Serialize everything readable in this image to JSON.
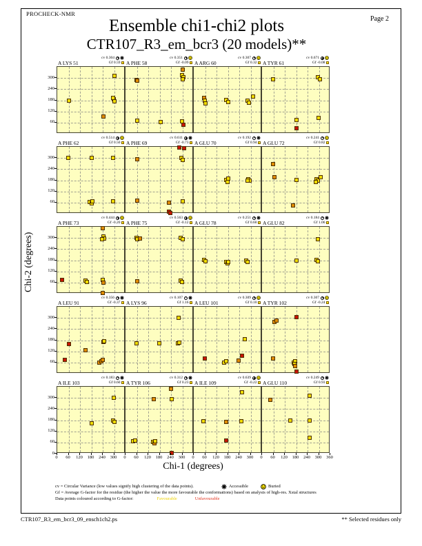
{
  "page": {
    "app": "PROCHECK-NMR",
    "page_label": "Page  2",
    "title": "Ensemble chi1-chi2 plots",
    "subtitle": "CTR107_R3_em_bcr3 (20 models)**",
    "xlabel": "Chi-1 (degrees)",
    "ylabel": "Chi-2 (degrees)",
    "footer_left": "CTR107_R3_em_bcr3_09_ensch1ch2.ps",
    "footer_right": "** Selected residues only"
  },
  "legend": {
    "line1": "cv = Circular Variance (low values signify high clustering of the data points).",
    "accessible_label": "Accessible",
    "buried_label": "Buried",
    "line2": "Gf = Average G-factor for the residue (the higher the value the more favourable the conformations) based on analysis of high-res. Xstal structures",
    "line3_prefix": "Data points coloured according to G-factor:",
    "favourable_label": "Favourable",
    "unfavourable_label": "Unfavourable"
  },
  "colors": {
    "plot_bg": "#FEFEC0",
    "favourable": "#EFDC00",
    "mid": "#E08C00",
    "unfavourable": "#C81400",
    "favourable_text": "#EDD200",
    "unfavourable_text": "#E0301C"
  },
  "axes": {
    "ticks": [
      0,
      60,
      120,
      180,
      240,
      300
    ],
    "max": 360,
    "end_tick": 360
  },
  "chart_data": {
    "type": "scatter",
    "x_range": [
      0,
      360
    ],
    "y_range": [
      0,
      360
    ],
    "grid_step": 60,
    "subplots": [
      {
        "residue": "A LYS 51",
        "cv": "0.304",
        "gf": "0.59",
        "access": "accessible",
        "points": [
          [
            60,
            180,
            "f"
          ],
          [
            300,
            312,
            "f"
          ],
          [
            297,
            185,
            "f"
          ],
          [
            300,
            175,
            "f"
          ],
          [
            293,
            192,
            "f"
          ],
          [
            243,
            92,
            "m"
          ]
        ]
      },
      {
        "residue": "A PHE 58",
        "cv": "0.351",
        "gf": "-0.09",
        "access": "buried",
        "points": [
          [
            57,
            290,
            "m"
          ],
          [
            63,
            286,
            "m"
          ],
          [
            300,
            345,
            "m"
          ],
          [
            298,
            315,
            "f"
          ],
          [
            305,
            305,
            "f"
          ],
          [
            300,
            295,
            "f"
          ],
          [
            62,
            70,
            "f"
          ],
          [
            185,
            62,
            "f"
          ],
          [
            298,
            68,
            "f"
          ],
          [
            305,
            50,
            "u"
          ]
        ]
      },
      {
        "residue": "A ARG 60",
        "cv": "0.307",
        "gf": "0.32",
        "access": "buried",
        "points": [
          [
            55,
            192,
            "m"
          ],
          [
            58,
            178,
            "f"
          ],
          [
            62,
            165,
            "f"
          ],
          [
            172,
            182,
            "f"
          ],
          [
            182,
            172,
            "f"
          ],
          [
            285,
            180,
            "f"
          ],
          [
            292,
            168,
            "f"
          ],
          [
            313,
            200,
            "f"
          ]
        ]
      },
      {
        "residue": "A TYR 61",
        "cv": "0.671",
        "gf": "-0.08",
        "access": "buried",
        "points": [
          [
            58,
            295,
            "f"
          ],
          [
            295,
            305,
            "f"
          ],
          [
            305,
            295,
            "f"
          ],
          [
            180,
            75,
            "f"
          ],
          [
            298,
            85,
            "f"
          ],
          [
            180,
            28,
            "u"
          ]
        ]
      },
      {
        "residue": "A PHE 62",
        "cv": "0.514",
        "gf": "0.50",
        "access": "buried",
        "points": [
          [
            58,
            300,
            "f"
          ],
          [
            180,
            300,
            "f"
          ],
          [
            295,
            300,
            "f"
          ],
          [
            172,
            62,
            "f"
          ],
          [
            180,
            55,
            "f"
          ],
          [
            185,
            68,
            "f"
          ],
          [
            295,
            68,
            "f"
          ]
        ]
      },
      {
        "residue": "A PHE 69",
        "cv": "0.611",
        "gf": "-0.73",
        "access": "accessible",
        "points": [
          [
            60,
            293,
            "m"
          ],
          [
            293,
            300,
            "f"
          ],
          [
            300,
            290,
            "f"
          ],
          [
            283,
            358,
            "u"
          ],
          [
            308,
            352,
            "u"
          ],
          [
            60,
            70,
            "m"
          ],
          [
            228,
            58,
            "m"
          ],
          [
            300,
            66,
            "f"
          ],
          [
            228,
            12,
            "u"
          ],
          [
            238,
            4,
            "u"
          ]
        ]
      },
      {
        "residue": "A GLU 70",
        "cv": "0.192",
        "gf": "0.94",
        "access": "accessible",
        "points": [
          [
            172,
            182,
            "f"
          ],
          [
            178,
            172,
            "f"
          ],
          [
            180,
            188,
            "f"
          ],
          [
            288,
            185,
            "f"
          ],
          [
            295,
            180,
            "f"
          ],
          [
            283,
            178,
            "f"
          ]
        ]
      },
      {
        "residue": "A GLU 72",
        "cv": "0.241",
        "gf": "0.82",
        "access": "buried",
        "points": [
          [
            58,
            268,
            "m"
          ],
          [
            65,
            195,
            "m"
          ],
          [
            180,
            182,
            "f"
          ],
          [
            288,
            185,
            "f"
          ],
          [
            295,
            178,
            "f"
          ],
          [
            310,
            195,
            "f"
          ],
          [
            283,
            172,
            "f"
          ],
          [
            165,
            45,
            "m"
          ]
        ]
      },
      {
        "residue": "A PHE 73",
        "cv": "0.444",
        "gf": "-0.20",
        "access": "buried",
        "points": [
          [
            240,
            352,
            "m"
          ],
          [
            242,
            308,
            "f"
          ],
          [
            248,
            298,
            "f"
          ],
          [
            238,
            292,
            "f"
          ],
          [
            25,
            75,
            "u"
          ],
          [
            150,
            70,
            "f"
          ],
          [
            158,
            62,
            "f"
          ],
          [
            240,
            75,
            "f"
          ],
          [
            242,
            58,
            "m"
          ],
          [
            240,
            3,
            "m"
          ]
        ]
      },
      {
        "residue": "A PHE 75",
        "cv": "0.563",
        "gf": "-0.12",
        "access": "buried",
        "points": [
          [
            57,
            300,
            "f"
          ],
          [
            63,
            295,
            "f"
          ],
          [
            78,
            298,
            "m"
          ],
          [
            292,
            302,
            "f"
          ],
          [
            300,
            295,
            "f"
          ],
          [
            60,
            68,
            "m"
          ],
          [
            292,
            72,
            "f"
          ],
          [
            298,
            64,
            "f"
          ]
        ]
      },
      {
        "residue": "A GLU 78",
        "cv": "0.251",
        "gf": "0.60",
        "access": "accessible",
        "points": [
          [
            55,
            182,
            "f"
          ],
          [
            62,
            175,
            "f"
          ],
          [
            170,
            172,
            "f"
          ],
          [
            178,
            165,
            "f"
          ],
          [
            183,
            170,
            "f"
          ],
          [
            278,
            180,
            "f"
          ],
          [
            285,
            172,
            "f"
          ]
        ]
      },
      {
        "residue": "A GLU 82",
        "cv": "0.184",
        "gf": "1.06",
        "access": "accessible",
        "points": [
          [
            293,
            295,
            "f"
          ],
          [
            180,
            180,
            "f"
          ],
          [
            287,
            182,
            "f"
          ],
          [
            293,
            175,
            "f"
          ]
        ]
      },
      {
        "residue": "A LEU 91",
        "cv": "0.356",
        "gf": "-0.37",
        "access": "accessible",
        "points": [
          [
            62,
            160,
            "u"
          ],
          [
            150,
            125,
            "m"
          ],
          [
            40,
            75,
            "u"
          ],
          [
            243,
            170,
            "f"
          ],
          [
            248,
            174,
            "f"
          ],
          [
            222,
            58,
            "m"
          ],
          [
            232,
            66,
            "m"
          ],
          [
            240,
            74,
            "m"
          ]
        ]
      },
      {
        "residue": "A LYS 96",
        "cv": "0.107",
        "gf": "1.16",
        "access": "accessible",
        "points": [
          [
            58,
            165,
            "f"
          ],
          [
            178,
            162,
            "f"
          ],
          [
            280,
            300,
            "f"
          ],
          [
            275,
            163,
            "f"
          ],
          [
            282,
            168,
            "f"
          ]
        ]
      },
      {
        "residue": "A LEU 101",
        "cv": "0.309",
        "gf": "0.10",
        "access": "buried",
        "points": [
          [
            58,
            80,
            "u"
          ],
          [
            160,
            60,
            "f"
          ],
          [
            170,
            65,
            "f"
          ],
          [
            238,
            72,
            "m"
          ],
          [
            253,
            95,
            "u"
          ],
          [
            268,
            185,
            "f"
          ]
        ]
      },
      {
        "residue": "A TYR 102",
        "cv": "0.307",
        "gf": "-0.24",
        "access": "buried",
        "points": [
          [
            65,
            278,
            "m"
          ],
          [
            78,
            285,
            "m"
          ],
          [
            180,
            305,
            "u"
          ],
          [
            58,
            80,
            "m"
          ],
          [
            166,
            60,
            "f"
          ],
          [
            174,
            66,
            "f"
          ],
          [
            170,
            52,
            "f"
          ],
          [
            174,
            40,
            "m"
          ],
          [
            180,
            12,
            "u"
          ]
        ]
      },
      {
        "residue": "A ILE 103",
        "cv": "0.183",
        "gf": "0.60",
        "access": "accessible",
        "points": [
          [
            180,
            165,
            "f"
          ],
          [
            296,
            178,
            "f"
          ],
          [
            302,
            170,
            "f"
          ],
          [
            298,
            300,
            "f"
          ]
        ]
      },
      {
        "residue": "A TYR 106",
        "cv": "0.312",
        "gf": "0.23",
        "access": "accessible",
        "points": [
          [
            240,
            350,
            "m"
          ],
          [
            150,
            295,
            "m"
          ],
          [
            244,
            295,
            "f"
          ],
          [
            40,
            65,
            "f"
          ],
          [
            52,
            72,
            "f"
          ],
          [
            144,
            62,
            "f"
          ],
          [
            152,
            55,
            "m"
          ],
          [
            158,
            66,
            "f"
          ],
          [
            244,
            5,
            "u"
          ]
        ]
      },
      {
        "residue": "A ILE 109",
        "cv": "0.639",
        "gf": "-0.22",
        "access": "buried",
        "points": [
          [
            50,
            175,
            "f"
          ],
          [
            172,
            170,
            "m"
          ],
          [
            252,
            175,
            "f"
          ],
          [
            255,
            330,
            "f"
          ],
          [
            172,
            70,
            "u"
          ]
        ]
      },
      {
        "residue": "A GLU 110",
        "cv": "0.249",
        "gf": "0.93",
        "access": "accessible",
        "points": [
          [
            45,
            290,
            "m"
          ],
          [
            252,
            310,
            "f"
          ],
          [
            150,
            180,
            "f"
          ],
          [
            252,
            180,
            "f"
          ],
          [
            252,
            85,
            "f"
          ]
        ]
      }
    ]
  }
}
